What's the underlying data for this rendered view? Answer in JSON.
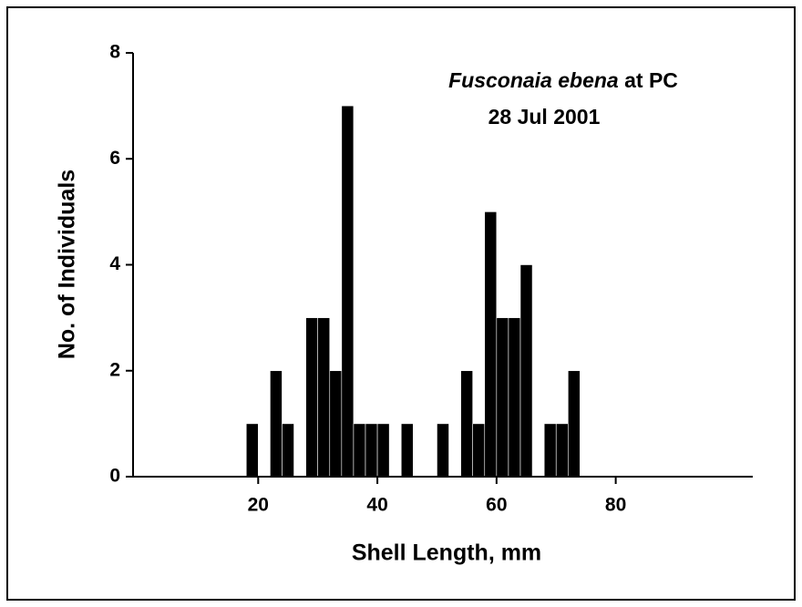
{
  "chart_data": {
    "type": "histogram",
    "title": [
      "Fusconaia ebena",
      "at PC"
    ],
    "subtitle": "28 Jul 2001",
    "x_label": "Shell Length, mm",
    "y_label": "No. of Individuals",
    "bins": [
      18,
      20,
      22,
      24,
      26,
      28,
      30,
      32,
      34,
      36,
      38,
      40,
      42,
      44,
      46,
      48,
      50,
      52,
      54,
      56,
      58,
      60,
      62,
      64,
      66,
      68,
      70,
      72,
      74
    ],
    "values": [
      1,
      0,
      2,
      1,
      0,
      3,
      3,
      2,
      7,
      1,
      1,
      1,
      0,
      1,
      0,
      0,
      1,
      0,
      2,
      1,
      5,
      3,
      3,
      4,
      0,
      1,
      1,
      2
    ],
    "color": "#000000",
    "xlim": [
      -1,
      103
    ],
    "xticks": [
      20,
      40,
      60,
      80
    ],
    "ylim": [
      0,
      8
    ],
    "yticks": [
      0,
      2,
      4,
      6,
      8
    ],
    "grid": false
  }
}
